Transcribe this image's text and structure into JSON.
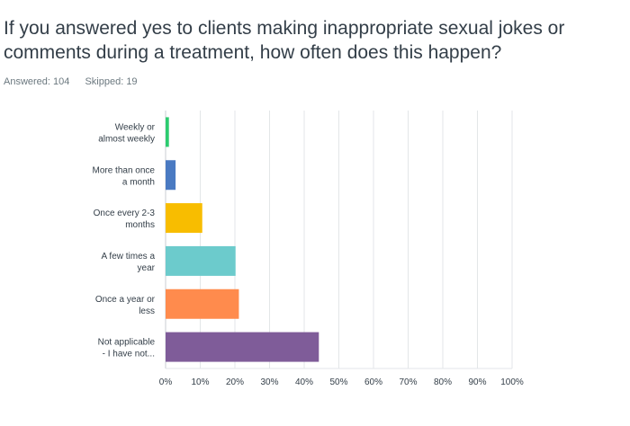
{
  "question": {
    "title": "If you answered yes to clients making inappropriate sexual jokes or comments during a treatment, how often does this happen?",
    "answered_label": "Answered: 104",
    "skipped_label": "Skipped: 19"
  },
  "chart_data": {
    "type": "bar",
    "orientation": "horizontal",
    "categories": [
      [
        "Weekly or",
        "almost weekly"
      ],
      [
        "More than once",
        "a month"
      ],
      [
        "Once every 2-3",
        "months"
      ],
      [
        "A few times a",
        "year"
      ],
      [
        "Once a year or",
        "less"
      ],
      [
        "Not applicable",
        "- I have not..."
      ]
    ],
    "values": [
      0.96,
      2.88,
      10.58,
      20.19,
      21.15,
      44.23
    ],
    "colors": [
      "#2dcc70",
      "#4a7ac2",
      "#f8bd00",
      "#6ccbcc",
      "#ff8b4d",
      "#7f5c99"
    ],
    "xlim": [
      0,
      100
    ],
    "xticks": [
      "0%",
      "10%",
      "20%",
      "30%",
      "40%",
      "50%",
      "60%",
      "70%",
      "80%",
      "90%",
      "100%"
    ],
    "grid": true
  }
}
